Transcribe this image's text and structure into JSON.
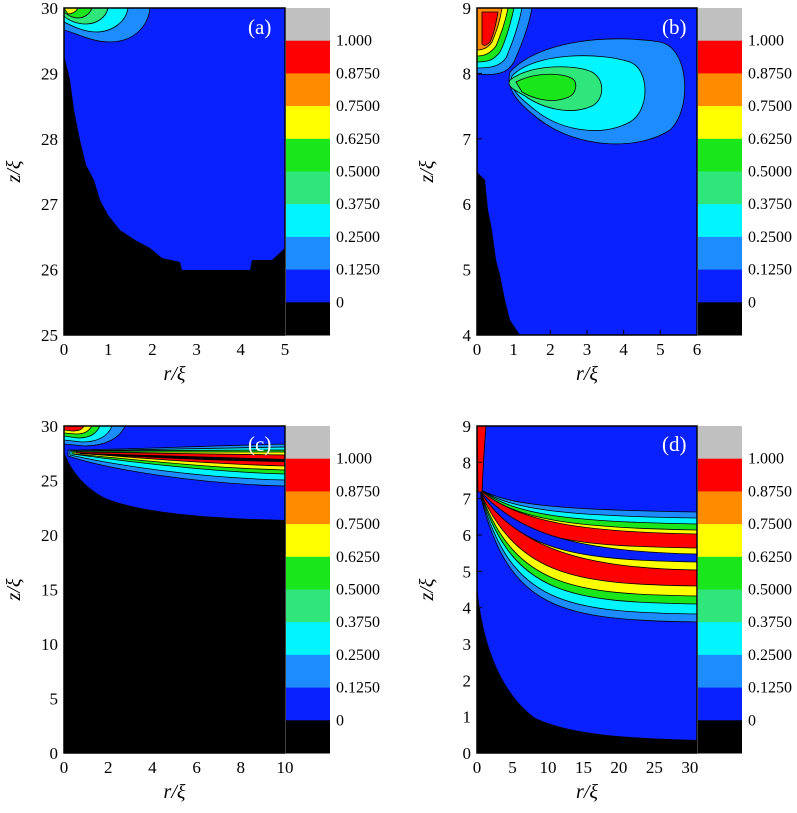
{
  "colors": {
    "black": "#000000",
    "blue": "#0a21ff",
    "lightblue": "#1c8cff",
    "cyan": "#00f5ff",
    "springgreen": "#2ee67a",
    "green": "#19e61b",
    "yellow": "#ffff00",
    "orange": "#ff8c00",
    "red": "#ff0000",
    "gray": "#c0c0c0"
  },
  "colorbar": {
    "labels": [
      "1.000",
      "0.8750",
      "0.7500",
      "0.6250",
      "0.5000",
      "0.3750",
      "0.2500",
      "0.1250",
      "0"
    ],
    "levels": [
      1.0,
      0.875,
      0.75,
      0.625,
      0.5,
      0.375,
      0.25,
      0.125,
      0.0
    ]
  },
  "chart_data": [
    {
      "type": "heatmap",
      "panel_label": "(a)",
      "xlabel": "r/ξ",
      "ylabel": "z/ξ",
      "xlim": [
        0,
        5
      ],
      "ylim": [
        25,
        30
      ],
      "xticks": [
        "0",
        "1",
        "2",
        "3",
        "4",
        "5"
      ],
      "yticks": [
        "25",
        "26",
        "27",
        "28",
        "29",
        "30"
      ]
    },
    {
      "type": "heatmap",
      "panel_label": "(b)",
      "xlabel": "r/ξ",
      "ylabel": "z/ξ",
      "xlim": [
        0,
        6
      ],
      "ylim": [
        4,
        9
      ],
      "xticks": [
        "0",
        "1",
        "2",
        "3",
        "4",
        "5",
        "6"
      ],
      "yticks": [
        "4",
        "5",
        "6",
        "7",
        "8",
        "9"
      ]
    },
    {
      "type": "heatmap",
      "panel_label": "(c)",
      "xlabel": "r/ξ",
      "ylabel": "z/ξ",
      "xlim": [
        0,
        10
      ],
      "ylim": [
        0,
        30
      ],
      "xticks": [
        "0",
        "2",
        "4",
        "6",
        "8",
        "10"
      ],
      "yticks": [
        "0",
        "5",
        "10",
        "15",
        "20",
        "25",
        "30"
      ]
    },
    {
      "type": "heatmap",
      "panel_label": "(d)",
      "xlabel": "r/ξ",
      "ylabel": "z/ξ",
      "xlim": [
        0,
        31
      ],
      "ylim": [
        0,
        9
      ],
      "xticks": [
        "0",
        "5",
        "10",
        "15",
        "20",
        "25",
        "30"
      ],
      "yticks": [
        "0",
        "1",
        "2",
        "3",
        "4",
        "5",
        "6",
        "7",
        "8",
        "9"
      ]
    }
  ]
}
